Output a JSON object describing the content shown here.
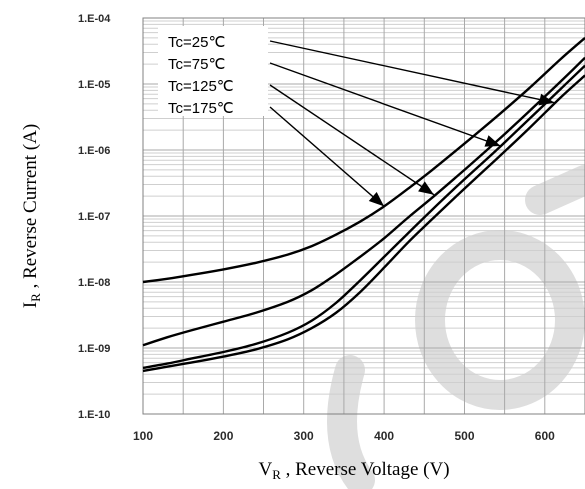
{
  "chart_data": {
    "type": "line",
    "title": "",
    "xlabel": "V",
    "xlabel_sub": "R",
    "xlabel_rest": " , Reverse Voltage (V)",
    "ylabel": "I",
    "ylabel_sub": "R",
    "ylabel_rest": " , Reverse Current (A)",
    "xlim": [
      100,
      650
    ],
    "ylim": [
      1e-10,
      0.0001
    ],
    "y_scale": "log",
    "grid": true,
    "legend_position": "top-left",
    "x_ticks": [
      100,
      200,
      300,
      400,
      500,
      600
    ],
    "x_tick_labels": [
      "100",
      "200",
      "300",
      "400",
      "500",
      "600"
    ],
    "y_ticks": [
      1e-10,
      1e-09,
      1e-08,
      1e-07,
      1e-06,
      1e-05,
      0.0001
    ],
    "y_tick_labels": [
      "1.E-10",
      "1.E-09",
      "1.E-08",
      "1.E-07",
      "1.E-06",
      "1.E-05",
      "1.E-04"
    ],
    "series": [
      {
        "name": "Tc=25℃",
        "x": [
          100,
          130,
          160,
          200,
          240,
          280,
          310,
          340,
          370,
          400,
          430,
          460,
          500,
          540,
          580,
          620,
          650
        ],
        "y": [
          4.5e-10,
          5.2e-10,
          6e-10,
          7.4e-10,
          9.5e-10,
          1.35e-09,
          2e-09,
          3.4e-09,
          7e-09,
          1.65e-08,
          4e-08,
          9e-08,
          2.6e-07,
          7.3e-07,
          2.1e-06,
          6.3e-06,
          1.35e-05
        ]
      },
      {
        "name": "Tc=75℃",
        "x": [
          100,
          130,
          160,
          200,
          240,
          280,
          310,
          340,
          370,
          400,
          430,
          460,
          500,
          540,
          580,
          620,
          650
        ],
        "y": [
          5e-10,
          5.8e-10,
          6.9e-10,
          8.7e-10,
          1.15e-09,
          1.7e-09,
          2.6e-09,
          4.8e-09,
          1.05e-08,
          2.4e-08,
          5.5e-08,
          1.25e-07,
          3.6e-07,
          1e-06,
          2.9e-06,
          8.5e-06,
          1.9e-05
        ]
      },
      {
        "name": "Tc=125℃",
        "x": [
          100,
          130,
          160,
          200,
          240,
          280,
          310,
          340,
          370,
          400,
          430,
          460,
          500,
          540,
          580,
          620,
          650
        ],
        "y": [
          1.1e-09,
          1.45e-09,
          1.85e-09,
          2.5e-09,
          3.4e-09,
          5e-09,
          7.5e-09,
          1.3e-08,
          2.4e-08,
          4.6e-08,
          9.5e-08,
          1.9e-07,
          5e-07,
          1.35e-06,
          3.8e-06,
          1.1e-05,
          2.5e-05
        ]
      },
      {
        "name": "Tc=175℃",
        "x": [
          100,
          130,
          160,
          200,
          240,
          280,
          310,
          340,
          370,
          400,
          430,
          460,
          500,
          540,
          580,
          620,
          650
        ],
        "y": [
          1e-08,
          1.12e-08,
          1.28e-08,
          1.55e-08,
          1.95e-08,
          2.6e-08,
          3.5e-08,
          5.2e-08,
          8.2e-08,
          1.4e-07,
          2.6e-07,
          5e-07,
          1.25e-06,
          3.2e-06,
          8.5e-06,
          2.4e-05,
          5e-05
        ]
      }
    ],
    "annotations": [
      {
        "series": 0,
        "x": 612,
        "y": 5.2e-06
      },
      {
        "series": 1,
        "x": 545,
        "y": 1.15e-06
      },
      {
        "series": 2,
        "x": 462,
        "y": 2.1e-07
      },
      {
        "series": 3,
        "x": 400,
        "y": 1.4e-07
      }
    ]
  }
}
